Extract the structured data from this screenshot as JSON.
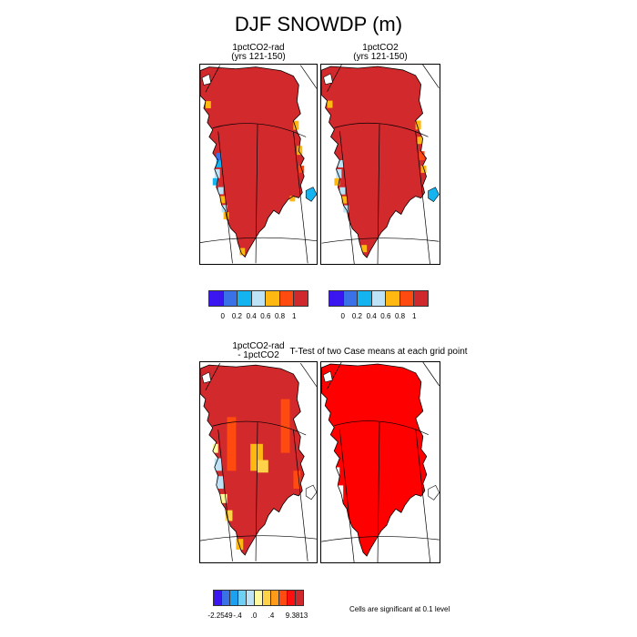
{
  "title": "DJF SNOWDP (m)",
  "panels": [
    {
      "line1": "1pctCO2-rad",
      "line2": "(yrs 121-150)"
    },
    {
      "line1": "1pctCO2",
      "line2": "(yrs 121-150)"
    },
    {
      "line1": "1pctCO2-rad",
      "line2": "- 1pctCO2"
    },
    {
      "line1": "T-Test of two Case means at each grid point",
      "line2": ""
    }
  ],
  "colors": {
    "top_bar": [
      "#3b16f0",
      "#3a71e6",
      "#14b4f0",
      "#bfe3f6",
      "#ffb711",
      "#ff4a10",
      "#d0292d"
    ],
    "diff_bar": [
      "#3b16f0",
      "#3a71e6",
      "#1ea0f0",
      "#6fd0f6",
      "#bfe3f6",
      "#fff9a0",
      "#ffd24a",
      "#ff9a1a",
      "#ff4a10",
      "#ff1010",
      "#d0292d"
    ],
    "snow": "#d2292d",
    "land": "#ffffff",
    "sig": "#ff0000"
  },
  "chart_data": [
    {
      "type": "heatmap",
      "title": "1pctCO2-rad (yrs 121-150)",
      "colorbar": {
        "labels": [
          "0",
          "0.2",
          "0.4",
          "0.6",
          "0.8",
          "1"
        ]
      }
    },
    {
      "type": "heatmap",
      "title": "1pctCO2 (yrs 121-150)",
      "colorbar": {
        "labels": [
          "0",
          "0.2",
          "0.4",
          "0.6",
          "0.8",
          "1"
        ]
      }
    },
    {
      "type": "heatmap",
      "title": "1pctCO2-rad - 1pctCO2",
      "colorbar": {
        "min": -2.2549,
        "max": 9.3813,
        "labels": [
          "-2.2549",
          "-.4",
          ".0",
          ".4",
          "9.3813"
        ]
      }
    },
    {
      "type": "heatmap",
      "title": "T-Test of two Case means at each grid point",
      "note": "Cells are significant at 0.1 level"
    }
  ],
  "colorbars": {
    "top_left": [
      "0",
      "0.2",
      "0.4",
      "0.6",
      "0.8",
      "1"
    ],
    "top_right": [
      "0",
      "0.2",
      "0.4",
      "0.6",
      "0.8",
      "1"
    ],
    "bottom": [
      "-2.2549",
      "-.4",
      ".0",
      ".4",
      "9.3813"
    ]
  },
  "note": "Cells are significant at 0.1 level"
}
